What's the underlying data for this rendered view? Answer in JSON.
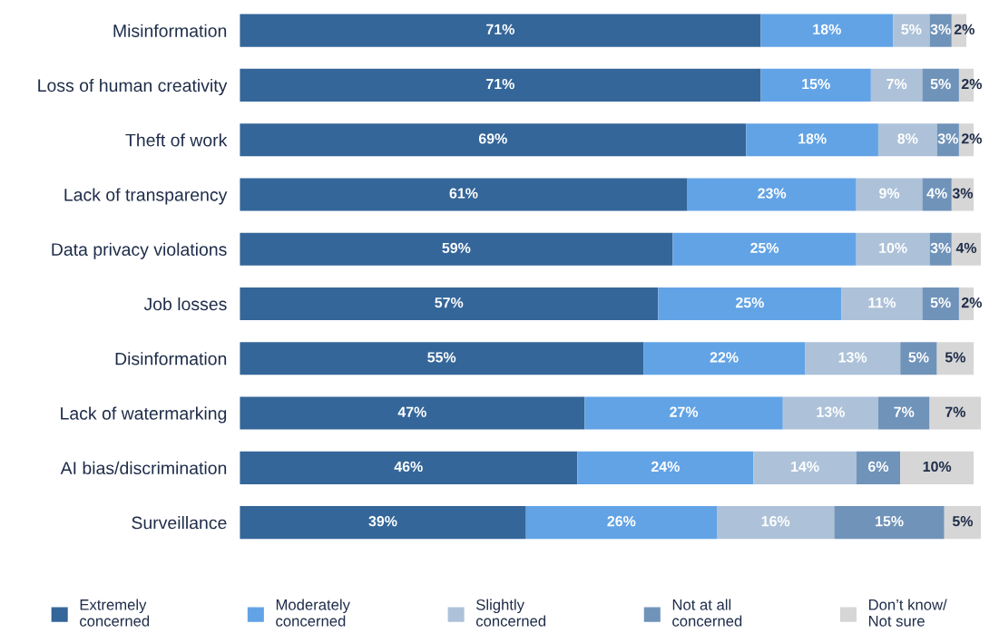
{
  "chart_data": {
    "type": "bar",
    "orientation": "horizontal",
    "stacked": true,
    "legend": "bottom",
    "grid": false,
    "categories": [
      "Misinformation",
      "Loss of human creativity",
      "Theft of work",
      "Lack of transparency",
      "Data privacy violations",
      "Job losses",
      "Disinformation",
      "Lack of watermarking",
      "AI bias/discrimination",
      "Surveillance"
    ],
    "series": [
      {
        "name": "Extremely\nconcerned",
        "color": "#346699",
        "values": [
          71,
          71,
          69,
          61,
          59,
          57,
          55,
          47,
          46,
          39
        ],
        "value_labels": [
          "71%",
          "71%",
          "69%",
          "61%",
          "59%",
          "57%",
          "55%",
          "47%",
          "46%",
          "39%"
        ]
      },
      {
        "name": "Moderately\nconcerned",
        "color": "#62a3e6",
        "values": [
          18,
          15,
          18,
          23,
          25,
          25,
          22,
          27,
          24,
          26
        ],
        "value_labels": [
          "18%",
          "15%",
          "18%",
          "23%",
          "25%",
          "25%",
          "22%",
          "27%",
          "24%",
          "26%"
        ]
      },
      {
        "name": "Slightly\nconcerned",
        "color": "#adc2d9",
        "values": [
          5,
          7,
          8,
          9,
          10,
          11,
          13,
          13,
          14,
          16
        ],
        "value_labels": [
          "5%",
          "7%",
          "8%",
          "9%",
          "10%",
          "11%",
          "13%",
          "13%",
          "14%",
          "16%"
        ]
      },
      {
        "name": "Not at all\nconcerned",
        "color": "#7093ba",
        "values": [
          3,
          5,
          3,
          4,
          3,
          5,
          5,
          7,
          6,
          15
        ],
        "value_labels": [
          "3%",
          "5%",
          "3%",
          "4%",
          "3%",
          "5%",
          "5%",
          "7%",
          "6%",
          "15%"
        ]
      },
      {
        "name": "Don’t know/\nNot sure",
        "color": "#d6d6d6",
        "values": [
          2,
          2,
          2,
          3,
          4,
          2,
          5,
          7,
          10,
          5
        ],
        "value_labels": [
          "2%",
          "2%",
          "2%",
          "3%",
          "4%",
          "2%",
          "5%",
          "7%",
          "10%",
          "5%"
        ]
      }
    ]
  }
}
